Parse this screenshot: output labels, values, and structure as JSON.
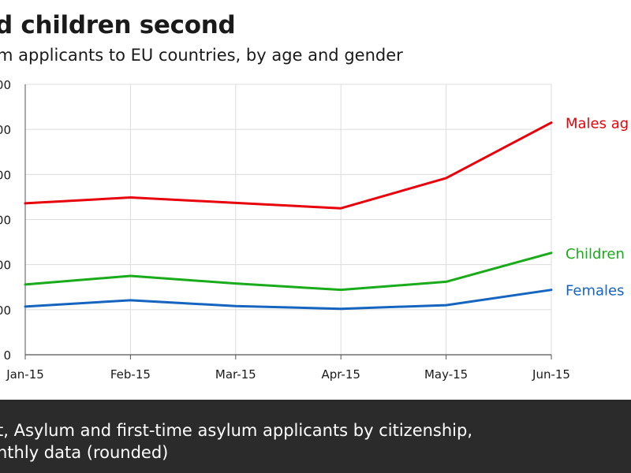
{
  "header": {
    "title": "d children second",
    "subtitle": "m applicants to EU countries, by age and gender"
  },
  "footer": {
    "line1": "t, Asylum and first-time asylum applicants by citizenship,",
    "line2": "nthly data (rounded)"
  },
  "colors": {
    "males": "#e8000b",
    "children": "#1aab1a",
    "females": "#1565c0",
    "grid": "#dcdcdc",
    "axis": "#555555",
    "text": "#1a1a1a",
    "footer_bg": "#2b2b2b"
  },
  "chart_data": {
    "type": "line",
    "categories": [
      "Jan-15",
      "Feb-15",
      "Mar-15",
      "Apr-15",
      "May-15",
      "Jun-15"
    ],
    "y_tick_labels": [
      "0",
      "00",
      "00",
      "00",
      "00",
      "00",
      "00"
    ],
    "y_tick_values": [
      0,
      1,
      2,
      3,
      4,
      5,
      6
    ],
    "ylim": [
      0,
      6
    ],
    "grid": true,
    "series": [
      {
        "name": "Males ag",
        "color": "#e8000b",
        "values": [
          3.36,
          3.49,
          3.37,
          3.25,
          3.92,
          5.15
        ]
      },
      {
        "name": "Children",
        "color": "#1aab1a",
        "values": [
          1.56,
          1.75,
          1.58,
          1.44,
          1.62,
          2.26
        ]
      },
      {
        "name": "Females",
        "color": "#1565c0",
        "values": [
          1.07,
          1.21,
          1.08,
          1.02,
          1.1,
          1.44
        ]
      }
    ]
  }
}
